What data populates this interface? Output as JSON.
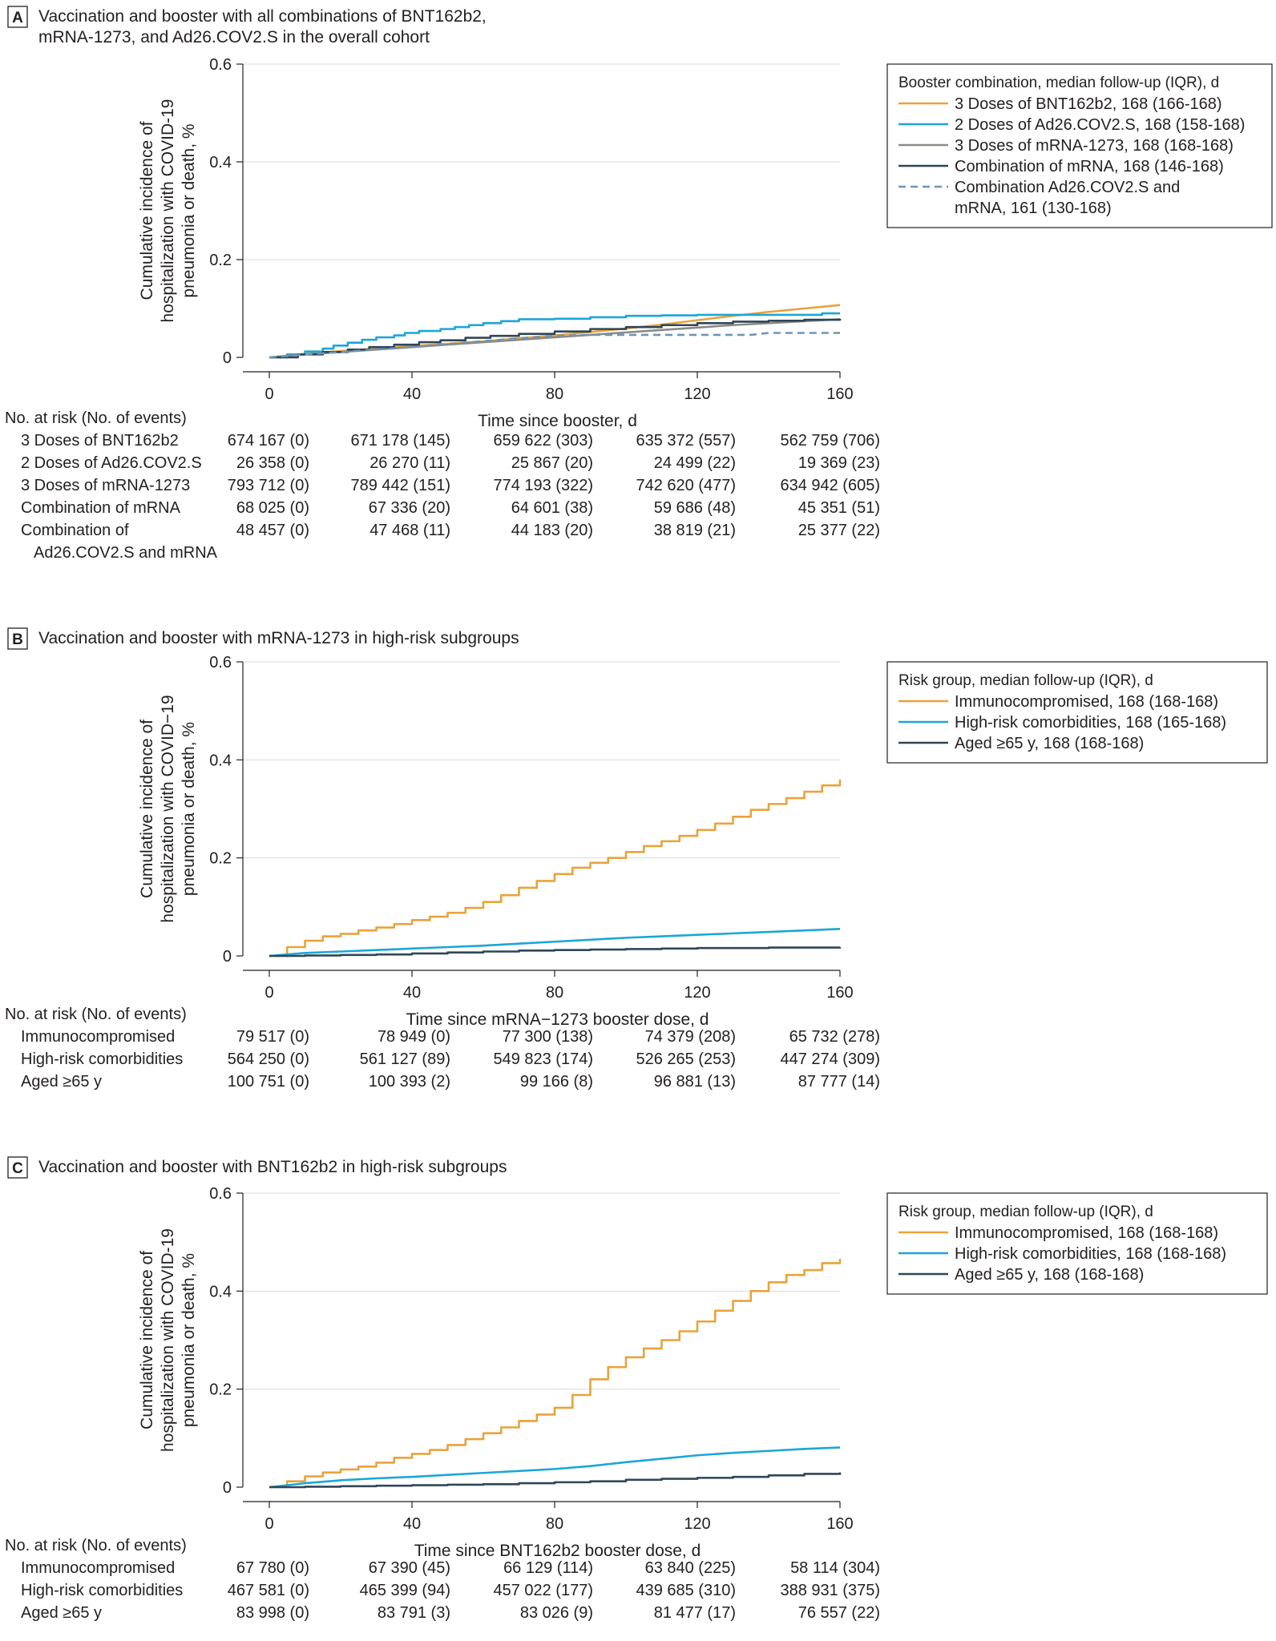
{
  "chart_data": [
    {
      "type": "line",
      "panel_letter": "A",
      "title_lines": [
        "Vaccination and booster with all combinations of BNT162b2,",
        "mRNA-1273, and Ad26.COV2.S in the overall cohort"
      ],
      "ylabel_lines": [
        "Cumulative incidence of",
        "hospitalization with COVID-19",
        "pneumonia or death, %"
      ],
      "xlabel": "Time since booster, d",
      "xlim": [
        0,
        160
      ],
      "ylim": [
        0,
        0.6
      ],
      "xticks": [
        0,
        40,
        80,
        120,
        160
      ],
      "yticks": [
        0,
        0.2,
        0.4,
        0.6
      ],
      "ytick_labels": [
        "0",
        "0.2",
        "0.4",
        "0.6"
      ],
      "grid": "horizontal",
      "legend_position": "right",
      "legend_title": "Booster combination, median follow-up (IQR), d",
      "series": [
        {
          "name_lines": [
            "3 Doses of BNT162b2, 168 (166-168)"
          ],
          "color": "#e8a33b",
          "dash": "",
          "step": false,
          "x": [
            0,
            10,
            20,
            30,
            40,
            50,
            60,
            70,
            80,
            90,
            100,
            110,
            120,
            130,
            140,
            150,
            160
          ],
          "y": [
            0,
            0.007,
            0.013,
            0.018,
            0.023,
            0.028,
            0.033,
            0.039,
            0.045,
            0.052,
            0.059,
            0.067,
            0.076,
            0.085,
            0.093,
            0.1,
            0.107
          ]
        },
        {
          "name_lines": [
            "2 Doses of Ad26.COV2.S, 168 (158-168)"
          ],
          "color": "#1ba6d8",
          "dash": "",
          "step": true,
          "x": [
            0,
            5,
            10,
            15,
            18,
            22,
            26,
            30,
            35,
            38,
            42,
            48,
            52,
            56,
            60,
            65,
            70,
            80,
            90,
            100,
            110,
            120,
            140,
            155,
            160
          ],
          "y": [
            0,
            0.006,
            0.012,
            0.018,
            0.024,
            0.03,
            0.036,
            0.041,
            0.045,
            0.05,
            0.054,
            0.058,
            0.062,
            0.066,
            0.07,
            0.074,
            0.078,
            0.079,
            0.082,
            0.085,
            0.086,
            0.087,
            0.087,
            0.09,
            0.09
          ]
        },
        {
          "name_lines": [
            "3 Doses of mRNA-1273, 168 (168-168)"
          ],
          "color": "#8a8a87",
          "dash": "",
          "step": false,
          "x": [
            0,
            10,
            20,
            30,
            40,
            50,
            60,
            70,
            80,
            90,
            100,
            110,
            120,
            130,
            140,
            150,
            160
          ],
          "y": [
            0,
            0.006,
            0.011,
            0.016,
            0.021,
            0.026,
            0.031,
            0.036,
            0.041,
            0.046,
            0.051,
            0.056,
            0.061,
            0.066,
            0.07,
            0.074,
            0.078
          ]
        },
        {
          "name_lines": [
            "Combination of mRNA, 168 (146-168)"
          ],
          "color": "#2f4657",
          "dash": "",
          "step": true,
          "x": [
            0,
            8,
            15,
            22,
            28,
            35,
            42,
            48,
            55,
            62,
            70,
            80,
            90,
            100,
            110,
            120,
            130,
            140,
            150,
            160
          ],
          "y": [
            0,
            0.006,
            0.011,
            0.016,
            0.021,
            0.026,
            0.031,
            0.035,
            0.04,
            0.044,
            0.048,
            0.053,
            0.058,
            0.062,
            0.066,
            0.07,
            0.073,
            0.075,
            0.077,
            0.079
          ]
        },
        {
          "name_lines": [
            "Combination Ad26.COV2.S and",
            "mRNA, 161 (130-168)"
          ],
          "color": "#6d95b5",
          "dash": "9 6",
          "step": false,
          "x": [
            0,
            10,
            20,
            30,
            40,
            50,
            60,
            70,
            80,
            90,
            100,
            110,
            120,
            130,
            135,
            140,
            150,
            160
          ],
          "y": [
            0,
            0.006,
            0.011,
            0.016,
            0.021,
            0.027,
            0.033,
            0.039,
            0.044,
            0.046,
            0.046,
            0.046,
            0.046,
            0.046,
            0.046,
            0.05,
            0.05,
            0.05
          ]
        }
      ],
      "risk_table": {
        "header": "No. at risk (No. of events)",
        "rows": [
          {
            "label_lines": [
              "3 Doses of BNT162b2"
            ],
            "values": [
              "674 167 (0)",
              "671 178 (145)",
              "659 622 (303)",
              "635 372 (557)",
              "562 759 (706)"
            ]
          },
          {
            "label_lines": [
              "2 Doses of Ad26.COV2.S"
            ],
            "values": [
              "26 358 (0)",
              "26 270 (11)",
              "25 867 (20)",
              "24 499 (22)",
              "19 369 (23)"
            ]
          },
          {
            "label_lines": [
              "3 Doses of mRNA-1273"
            ],
            "values": [
              "793 712 (0)",
              "789 442 (151)",
              "774 193 (322)",
              "742 620 (477)",
              "634 942 (605)"
            ]
          },
          {
            "label_lines": [
              "Combination of mRNA"
            ],
            "values": [
              "68 025 (0)",
              "67 336 (20)",
              "64 601 (38)",
              "59 686 (48)",
              "45 351 (51)"
            ]
          },
          {
            "label_lines": [
              "Combination of",
              "Ad26.COV2.S and mRNA"
            ],
            "values": [
              "48 457 (0)",
              "47 468 (11)",
              "44 183 (20)",
              "38 819 (21)",
              "25 377 (22)"
            ]
          }
        ]
      }
    },
    {
      "type": "line",
      "panel_letter": "B",
      "title_lines": [
        "Vaccination and booster with mRNA-1273 in high-risk subgroups"
      ],
      "ylabel_lines": [
        "Cumulative incidence of",
        "hospitalization with COVID−19",
        "pneumonia or death, %"
      ],
      "xlabel": "Time since mRNA−1273 booster dose, d",
      "xlim": [
        0,
        160
      ],
      "ylim": [
        0,
        0.6
      ],
      "xticks": [
        0,
        40,
        80,
        120,
        160
      ],
      "yticks": [
        0,
        0.2,
        0.4,
        0.6
      ],
      "ytick_labels": [
        "0",
        "0.2",
        "0.4",
        "0.6"
      ],
      "grid": "horizontal",
      "legend_position": "right",
      "legend_title": "Risk group, median follow-up (IQR), d",
      "series": [
        {
          "name_lines": [
            "Immunocompromised, 168 (168-168)"
          ],
          "color": "#e8a33b",
          "dash": "",
          "step": true,
          "x": [
            0,
            5,
            10,
            15,
            20,
            25,
            30,
            35,
            40,
            45,
            50,
            55,
            60,
            65,
            70,
            75,
            80,
            85,
            90,
            95,
            100,
            105,
            110,
            115,
            120,
            125,
            130,
            135,
            140,
            145,
            150,
            155,
            160
          ],
          "y": [
            0,
            0.018,
            0.031,
            0.04,
            0.045,
            0.052,
            0.058,
            0.065,
            0.073,
            0.08,
            0.088,
            0.098,
            0.11,
            0.124,
            0.139,
            0.153,
            0.167,
            0.18,
            0.19,
            0.2,
            0.212,
            0.224,
            0.234,
            0.245,
            0.257,
            0.27,
            0.284,
            0.298,
            0.31,
            0.322,
            0.335,
            0.348,
            0.36
          ]
        },
        {
          "name_lines": [
            "High-risk comorbidities, 168 (165-168)"
          ],
          "color": "#1ba6d8",
          "dash": "",
          "step": false,
          "x": [
            0,
            10,
            20,
            30,
            40,
            50,
            60,
            70,
            80,
            90,
            100,
            110,
            120,
            130,
            140,
            150,
            160
          ],
          "y": [
            0,
            0.006,
            0.009,
            0.012,
            0.015,
            0.018,
            0.021,
            0.025,
            0.029,
            0.033,
            0.037,
            0.04,
            0.043,
            0.046,
            0.049,
            0.052,
            0.055
          ]
        },
        {
          "name_lines": [
            "Aged ≥65 y, 168 (168-168)"
          ],
          "color": "#2f4657",
          "dash": "",
          "step": true,
          "x": [
            0,
            10,
            20,
            30,
            40,
            50,
            60,
            70,
            80,
            90,
            100,
            110,
            120,
            130,
            140,
            150,
            160
          ],
          "y": [
            0,
            0.001,
            0.002,
            0.003,
            0.005,
            0.007,
            0.009,
            0.011,
            0.012,
            0.013,
            0.014,
            0.015,
            0.016,
            0.016,
            0.017,
            0.017,
            0.018
          ]
        }
      ],
      "risk_table": {
        "header": "No. at risk (No. of events)",
        "rows": [
          {
            "label_lines": [
              "Immunocompromised"
            ],
            "values": [
              "79 517 (0)",
              "78 949 (0)",
              "77 300 (138)",
              "74 379 (208)",
              "65 732 (278)"
            ]
          },
          {
            "label_lines": [
              "High-risk comorbidities"
            ],
            "values": [
              "564 250 (0)",
              "561 127 (89)",
              "549 823 (174)",
              "526 265 (253)",
              "447 274 (309)"
            ]
          },
          {
            "label_lines": [
              "Aged ≥65 y"
            ],
            "values": [
              "100 751 (0)",
              "100 393 (2)",
              "99 166 (8)",
              "96 881 (13)",
              "87 777 (14)"
            ]
          }
        ]
      }
    },
    {
      "type": "line",
      "panel_letter": "C",
      "title_lines": [
        "Vaccination and booster with BNT162b2 in high-risk subgroups"
      ],
      "ylabel_lines": [
        "Cumulative incidence of",
        "hospitalization with COVID-19",
        "pneumonia or death, %"
      ],
      "xlabel": "Time since BNT162b2 booster dose, d",
      "xlim": [
        0,
        160
      ],
      "ylim": [
        0,
        0.6
      ],
      "xticks": [
        0,
        40,
        80,
        120,
        160
      ],
      "yticks": [
        0,
        0.2,
        0.4,
        0.6
      ],
      "ytick_labels": [
        "0",
        "0.2",
        "0.4",
        "0.6"
      ],
      "grid": "horizontal",
      "legend_position": "right",
      "legend_title": "Risk group, median follow-up (IQR), d",
      "series": [
        {
          "name_lines": [
            "Immunocompromised, 168 (168-168)"
          ],
          "color": "#e8a33b",
          "dash": "",
          "step": true,
          "x": [
            0,
            5,
            10,
            15,
            20,
            25,
            30,
            35,
            40,
            45,
            50,
            55,
            60,
            65,
            70,
            75,
            80,
            85,
            90,
            95,
            100,
            105,
            110,
            115,
            120,
            125,
            130,
            135,
            140,
            145,
            150,
            155,
            160
          ],
          "y": [
            0,
            0.012,
            0.022,
            0.03,
            0.036,
            0.042,
            0.05,
            0.06,
            0.068,
            0.076,
            0.086,
            0.098,
            0.11,
            0.122,
            0.135,
            0.148,
            0.162,
            0.188,
            0.22,
            0.245,
            0.265,
            0.283,
            0.3,
            0.318,
            0.338,
            0.36,
            0.38,
            0.4,
            0.418,
            0.433,
            0.443,
            0.457,
            0.466
          ]
        },
        {
          "name_lines": [
            "High-risk comorbidities, 168 (168-168)"
          ],
          "color": "#1ba6d8",
          "dash": "",
          "step": false,
          "x": [
            0,
            10,
            20,
            30,
            40,
            50,
            60,
            70,
            80,
            90,
            100,
            110,
            120,
            130,
            140,
            150,
            160
          ],
          "y": [
            0,
            0.008,
            0.014,
            0.018,
            0.021,
            0.025,
            0.029,
            0.033,
            0.037,
            0.043,
            0.051,
            0.058,
            0.065,
            0.07,
            0.074,
            0.078,
            0.081
          ]
        },
        {
          "name_lines": [
            "Aged ≥65 y, 168 (168-168)"
          ],
          "color": "#2f4657",
          "dash": "",
          "step": true,
          "x": [
            0,
            10,
            20,
            30,
            40,
            50,
            60,
            70,
            80,
            90,
            100,
            110,
            120,
            130,
            140,
            150,
            160
          ],
          "y": [
            0,
            0.001,
            0.002,
            0.003,
            0.004,
            0.005,
            0.006,
            0.008,
            0.01,
            0.012,
            0.015,
            0.017,
            0.019,
            0.021,
            0.024,
            0.027,
            0.03
          ]
        }
      ],
      "risk_table": {
        "header": "No. at risk (No. of events)",
        "rows": [
          {
            "label_lines": [
              "Immunocompromised"
            ],
            "values": [
              "67 780 (0)",
              "67 390 (45)",
              "66 129 (114)",
              "63 840 (225)",
              "58 114 (304)"
            ]
          },
          {
            "label_lines": [
              "High-risk comorbidities"
            ],
            "values": [
              "467 581 (0)",
              "465 399 (94)",
              "457 022 (177)",
              "439 685 (310)",
              "388 931 (375)"
            ]
          },
          {
            "label_lines": [
              "Aged ≥65 y"
            ],
            "values": [
              "83 998 (0)",
              "83 791 (3)",
              "83 026 (9)",
              "81 477 (17)",
              "76 557 (22)"
            ]
          }
        ]
      }
    }
  ]
}
